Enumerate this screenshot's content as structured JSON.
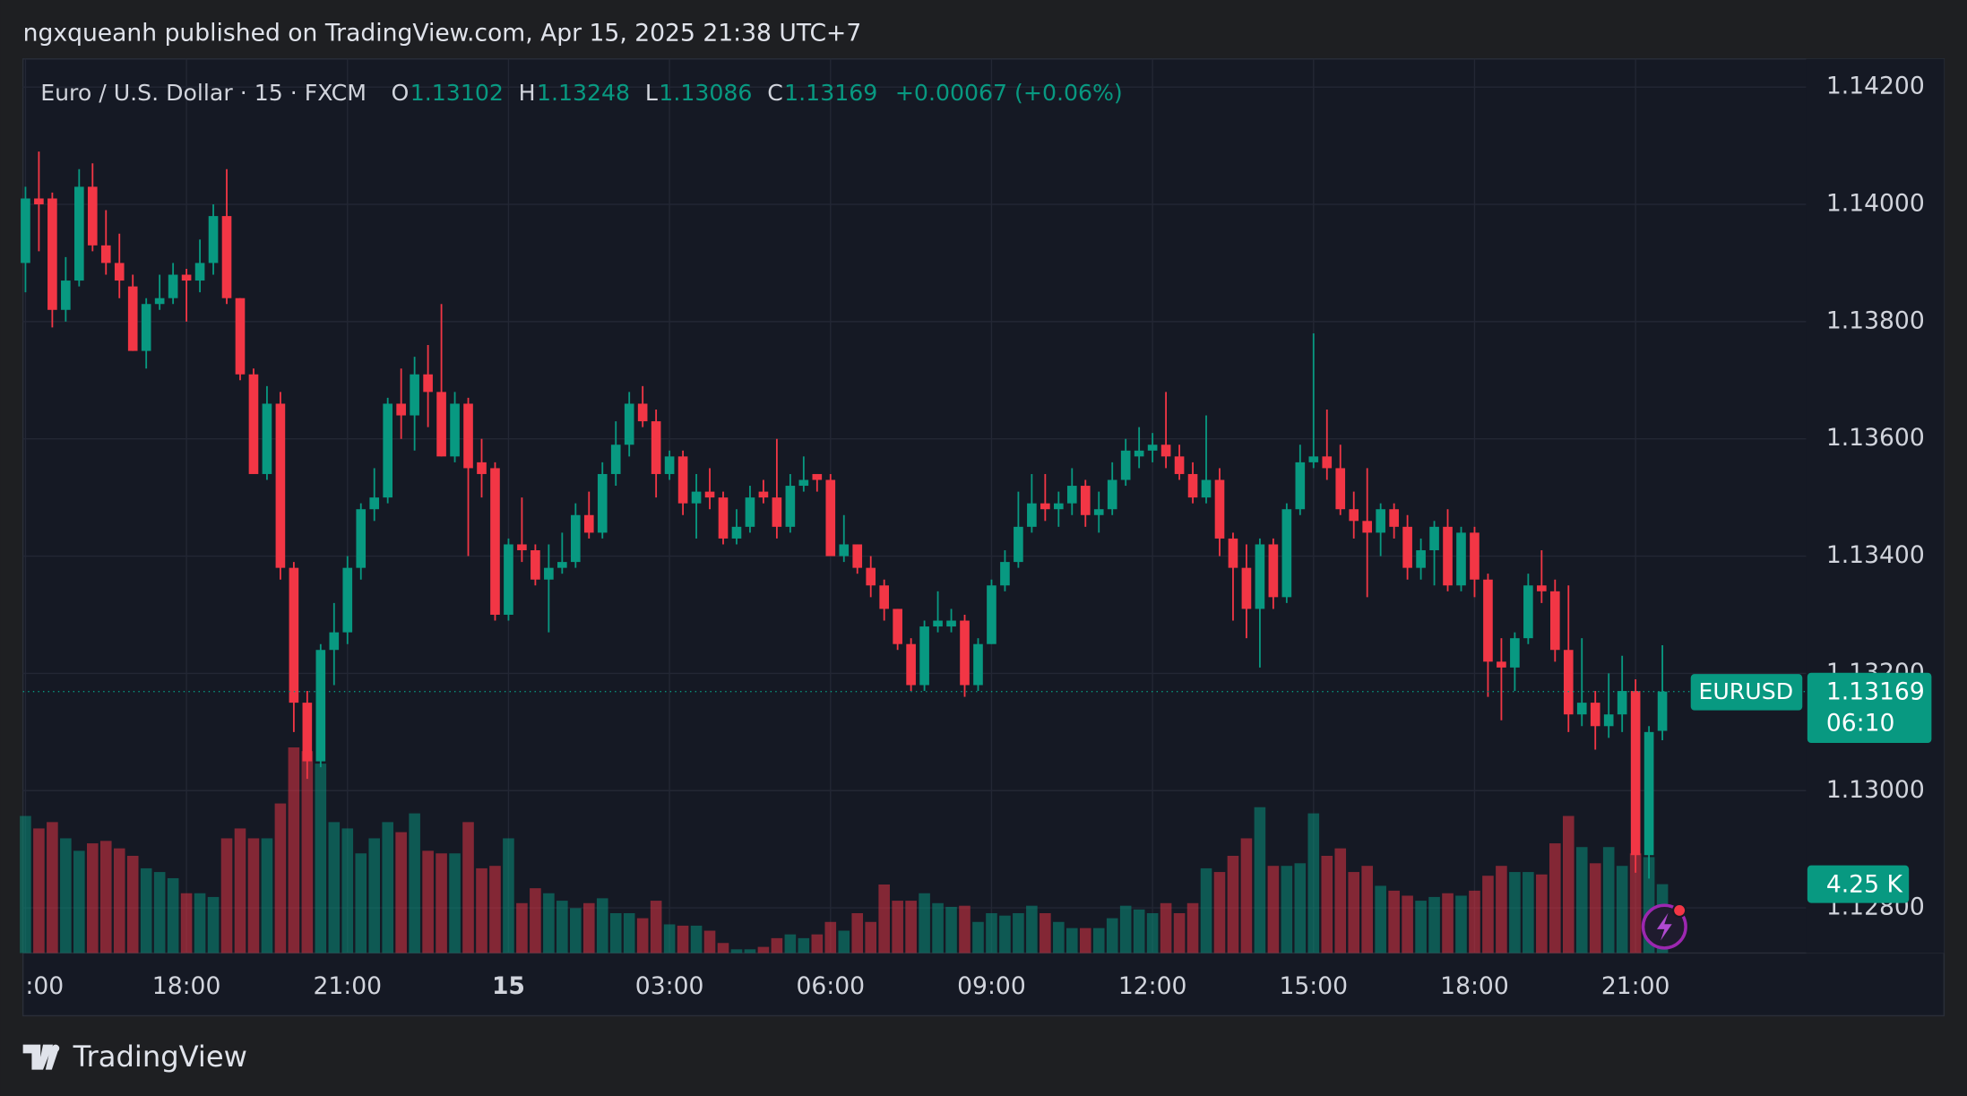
{
  "page": {
    "published": "ngxqueanh published on TradingView.com, Apr 15, 2025 21:38 UTC+7",
    "footer": "TradingView"
  },
  "chart_data": {
    "type": "candlestick",
    "header": {
      "symbol": "Euro / U.S. Dollar · 15 · FXCM",
      "labels": [
        "O",
        "H",
        "L",
        "C"
      ],
      "change": "+0.00067 (+0.06%)"
    },
    "ticker": "EURUSD",
    "countdown": "06:10",
    "up_color": "#089981",
    "down_color": "#f23645",
    "grid": true,
    "categories": [
      ":00",
      null,
      null,
      null,
      null,
      null,
      null,
      null,
      null,
      null,
      null,
      null,
      "18:00",
      null,
      null,
      null,
      null,
      null,
      null,
      null,
      null,
      null,
      null,
      null,
      "21:00",
      null,
      null,
      null,
      null,
      null,
      null,
      null,
      null,
      null,
      null,
      null,
      "15",
      null,
      null,
      null,
      null,
      null,
      null,
      null,
      null,
      null,
      null,
      null,
      "03:00",
      null,
      null,
      null,
      null,
      null,
      null,
      null,
      null,
      null,
      null,
      null,
      "06:00",
      null,
      null,
      null,
      null,
      null,
      null,
      null,
      null,
      null,
      null,
      null,
      "09:00",
      null,
      null,
      null,
      null,
      null,
      null,
      null,
      null,
      null,
      null,
      null,
      "12:00",
      null,
      null,
      null,
      null,
      null,
      null,
      null,
      null,
      null,
      null,
      null,
      "15:00",
      null,
      null,
      null,
      null,
      null,
      null,
      null,
      null,
      null,
      null,
      null,
      "18:00",
      null,
      null,
      null,
      null,
      null,
      null,
      null,
      null,
      null,
      null,
      null,
      "21:00",
      null,
      null
    ],
    "open": [
      1.139,
      1.1401,
      1.1401,
      1.1382,
      1.1387,
      1.1403,
      1.1393,
      1.139,
      1.1386,
      1.1375,
      1.1383,
      1.1384,
      1.1388,
      1.1387,
      1.139,
      1.1398,
      1.1384,
      1.1371,
      1.1354,
      1.1366,
      1.1338,
      1.1315,
      1.1305,
      1.1324,
      1.1327,
      1.1338,
      1.1348,
      1.135,
      1.1366,
      1.1364,
      1.1371,
      1.1368,
      1.1357,
      1.1366,
      1.1356,
      1.1355,
      1.133,
      1.1342,
      1.1341,
      1.1336,
      1.1338,
      1.1339,
      1.1347,
      1.1344,
      1.1354,
      1.1359,
      1.1366,
      1.1363,
      1.1354,
      1.1357,
      1.1349,
      1.1351,
      1.135,
      1.1343,
      1.1345,
      1.1351,
      1.135,
      1.1345,
      1.1352,
      1.1354,
      1.1353,
      1.134,
      1.1342,
      1.1338,
      1.1335,
      1.1331,
      1.1325,
      1.1318,
      1.1328,
      1.1328,
      1.1329,
      1.1318,
      1.1325,
      1.1335,
      1.1339,
      1.1345,
      1.1349,
      1.1348,
      1.1349,
      1.1352,
      1.1347,
      1.1348,
      1.1353,
      1.1357,
      1.1358,
      1.1359,
      1.1357,
      1.1354,
      1.135,
      1.1353,
      1.1343,
      1.1338,
      1.1331,
      1.1342,
      1.1333,
      1.1348,
      1.1356,
      1.1357,
      1.1355,
      1.1348,
      1.1346,
      1.1344,
      1.1348,
      1.1345,
      1.1338,
      1.1341,
      1.1345,
      1.1335,
      1.1344,
      1.1336,
      1.1322,
      1.1321,
      1.1326,
      1.1335,
      1.1334,
      1.1324,
      1.1313,
      1.1315,
      1.1311,
      1.1313,
      1.1317,
      1.1289,
      1.13102
    ],
    "high": [
      1.1403,
      1.1409,
      1.1402,
      1.1391,
      1.1406,
      1.1407,
      1.1399,
      1.1395,
      1.1388,
      1.1384,
      1.1388,
      1.139,
      1.1389,
      1.1394,
      1.14,
      1.1406,
      1.1384,
      1.1372,
      1.1369,
      1.1368,
      1.1339,
      1.1317,
      1.1325,
      1.1332,
      1.134,
      1.1349,
      1.1355,
      1.1367,
      1.1372,
      1.1374,
      1.1376,
      1.1383,
      1.1368,
      1.1367,
      1.136,
      1.1356,
      1.1343,
      1.135,
      1.1342,
      1.1342,
      1.1344,
      1.1349,
      1.1351,
      1.1356,
      1.1363,
      1.1368,
      1.1369,
      1.1365,
      1.1358,
      1.1358,
      1.1354,
      1.1355,
      1.1351,
      1.1348,
      1.1352,
      1.1353,
      1.136,
      1.1354,
      1.1357,
      1.1354,
      1.1354,
      1.1347,
      1.1342,
      1.134,
      1.1336,
      1.1331,
      1.1326,
      1.1329,
      1.1334,
      1.1331,
      1.133,
      1.1326,
      1.1336,
      1.1341,
      1.1351,
      1.1354,
      1.1354,
      1.1351,
      1.1355,
      1.1353,
      1.1351,
      1.1356,
      1.136,
      1.1362,
      1.1361,
      1.1368,
      1.1359,
      1.1356,
      1.1364,
      1.1355,
      1.1344,
      1.1342,
      1.1343,
      1.1343,
      1.1349,
      1.1359,
      1.1378,
      1.1365,
      1.1359,
      1.1351,
      1.1355,
      1.1349,
      1.1349,
      1.1347,
      1.1343,
      1.1346,
      1.1348,
      1.1345,
      1.1345,
      1.1337,
      1.1326,
      1.1327,
      1.1337,
      1.1341,
      1.1336,
      1.1335,
      1.1326,
      1.1317,
      1.132,
      1.1323,
      1.1319,
      1.1311,
      1.13248
    ],
    "low": [
      1.1385,
      1.1392,
      1.1379,
      1.138,
      1.1386,
      1.1392,
      1.1388,
      1.1384,
      1.1375,
      1.1372,
      1.1382,
      1.1383,
      1.138,
      1.1385,
      1.1388,
      1.1383,
      1.137,
      1.1354,
      1.1353,
      1.1336,
      1.131,
      1.1302,
      1.1304,
      1.1318,
      1.1325,
      1.1336,
      1.1346,
      1.1349,
      1.136,
      1.1358,
      1.1362,
      1.1357,
      1.1356,
      1.134,
      1.135,
      1.1329,
      1.1329,
      1.1339,
      1.1335,
      1.1327,
      1.1337,
      1.1338,
      1.1343,
      1.1343,
      1.1352,
      1.1357,
      1.1362,
      1.135,
      1.1353,
      1.1347,
      1.1343,
      1.1348,
      1.1342,
      1.1342,
      1.1344,
      1.1349,
      1.1343,
      1.1344,
      1.1351,
      1.1351,
      1.134,
      1.1339,
      1.1337,
      1.1333,
      1.1329,
      1.1324,
      1.1317,
      1.1317,
      1.1327,
      1.1327,
      1.1316,
      1.1317,
      1.1325,
      1.1334,
      1.1338,
      1.1344,
      1.1346,
      1.1345,
      1.1347,
      1.1345,
      1.1344,
      1.1347,
      1.1352,
      1.1355,
      1.1356,
      1.1355,
      1.1353,
      1.1349,
      1.1349,
      1.134,
      1.1329,
      1.1326,
      1.1321,
      1.1331,
      1.1332,
      1.1347,
      1.1355,
      1.1353,
      1.1347,
      1.1343,
      1.1333,
      1.134,
      1.1343,
      1.1336,
      1.1336,
      1.1335,
      1.1334,
      1.1334,
      1.1333,
      1.1316,
      1.1312,
      1.1317,
      1.1325,
      1.1332,
      1.1322,
      1.131,
      1.1311,
      1.1307,
      1.1309,
      1.131,
      1.1286,
      1.1285,
      1.13086
    ],
    "close": [
      1.1401,
      1.14,
      1.1382,
      1.1387,
      1.1403,
      1.1393,
      1.139,
      1.1387,
      1.1375,
      1.1383,
      1.1384,
      1.1388,
      1.1387,
      1.139,
      1.1398,
      1.1384,
      1.1371,
      1.1354,
      1.1366,
      1.1338,
      1.1315,
      1.1305,
      1.1324,
      1.1327,
      1.1338,
      1.1348,
      1.135,
      1.1366,
      1.1364,
      1.1371,
      1.1368,
      1.1357,
      1.1366,
      1.1355,
      1.1354,
      1.133,
      1.1342,
      1.1341,
      1.1336,
      1.1338,
      1.1339,
      1.1347,
      1.1344,
      1.1354,
      1.1359,
      1.1366,
      1.1363,
      1.1354,
      1.1357,
      1.1349,
      1.1351,
      1.135,
      1.1343,
      1.1345,
      1.135,
      1.135,
      1.1345,
      1.1352,
      1.1353,
      1.1353,
      1.134,
      1.1342,
      1.1338,
      1.1335,
      1.1331,
      1.1325,
      1.1318,
      1.1328,
      1.1329,
      1.1329,
      1.1318,
      1.1325,
      1.1335,
      1.1339,
      1.1345,
      1.1349,
      1.1348,
      1.1349,
      1.1352,
      1.1347,
      1.1348,
      1.1353,
      1.1358,
      1.1358,
      1.1359,
      1.1357,
      1.1354,
      1.135,
      1.1353,
      1.1343,
      1.1338,
      1.1331,
      1.1342,
      1.1333,
      1.1348,
      1.1356,
      1.1357,
      1.1355,
      1.1348,
      1.1346,
      1.1344,
      1.1348,
      1.1345,
      1.1338,
      1.1341,
      1.1345,
      1.1335,
      1.1344,
      1.1336,
      1.1322,
      1.1321,
      1.1326,
      1.1335,
      1.1334,
      1.1324,
      1.1313,
      1.1315,
      1.1311,
      1.1313,
      1.1317,
      1.1289,
      1.131,
      1.13169
    ],
    "volume": {
      "values": [
        8.46,
        7.69,
        8.08,
        7.08,
        6.31,
        6.77,
        6.92,
        6.46,
        6.0,
        5.23,
        5.0,
        4.62,
        3.69,
        3.69,
        3.46,
        7.08,
        7.69,
        7.08,
        7.08,
        9.23,
        12.69,
        12.46,
        11.69,
        8.08,
        7.69,
        6.15,
        7.08,
        8.08,
        7.46,
        8.62,
        6.31,
        6.15,
        6.15,
        8.08,
        5.23,
        5.38,
        7.08,
        3.08,
        4.0,
        3.69,
        3.23,
        2.77,
        3.08,
        3.38,
        2.46,
        2.46,
        2.15,
        3.23,
        1.77,
        1.69,
        1.69,
        1.38,
        0.62,
        0.23,
        0.23,
        0.38,
        0.92,
        1.15,
        0.92,
        1.15,
        1.92,
        1.38,
        2.46,
        1.92,
        4.23,
        3.23,
        3.23,
        3.69,
        3.08,
        2.85,
        2.92,
        1.92,
        2.46,
        2.31,
        2.46,
        2.92,
        2.46,
        1.92,
        1.54,
        1.54,
        1.54,
        2.15,
        2.92,
        2.69,
        2.46,
        3.08,
        2.46,
        3.08,
        5.23,
        5.0,
        6.0,
        7.08,
        9.0,
        5.38,
        5.38,
        5.54,
        8.62,
        6.0,
        6.46,
        5.0,
        5.38,
        4.15,
        3.85,
        3.54,
        3.23,
        3.46,
        3.69,
        3.54,
        3.85,
        4.77,
        5.38,
        5.0,
        5.0,
        4.85,
        6.77,
        8.46,
        6.54,
        5.54,
        6.54,
        5.38,
        6.15,
        5.92,
        4.25
      ],
      "last_label": "4.25 K"
    },
    "ylim": [
      1.12723,
      1.14248
    ],
    "yticks": [
      {
        "value": 1.142,
        "label": "1.14200"
      },
      {
        "value": 1.14,
        "label": "1.14000"
      },
      {
        "value": 1.138,
        "label": "1.13800"
      },
      {
        "value": 1.136,
        "label": "1.13600"
      },
      {
        "value": 1.134,
        "label": "1.13400"
      },
      {
        "value": 1.132,
        "label": "1.13200"
      },
      {
        "value": 1.13,
        "label": "1.13000"
      },
      {
        "value": 1.128,
        "label": "1.12800"
      }
    ]
  }
}
